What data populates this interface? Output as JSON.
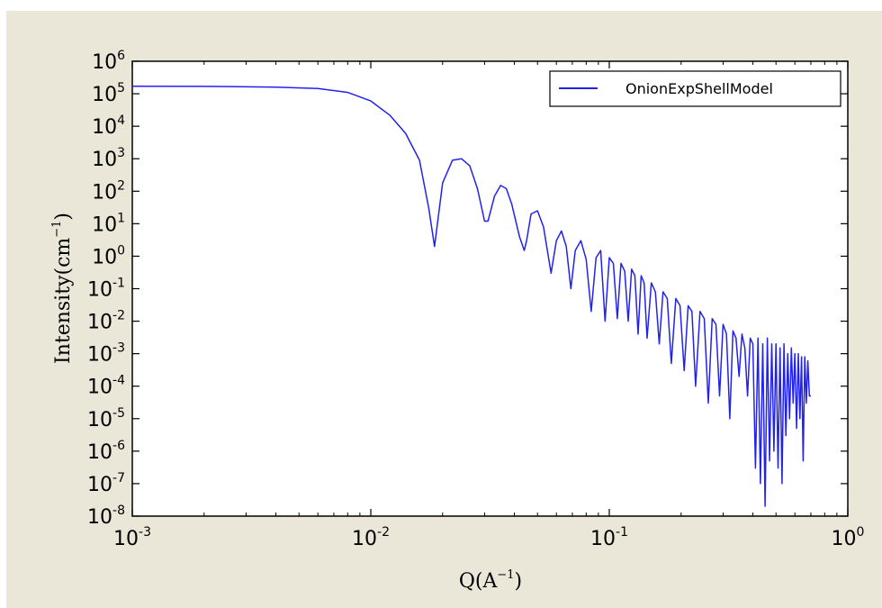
{
  "chart_data": {
    "type": "line",
    "xlabel": {
      "base": "Q(A",
      "sup": "−1",
      "close": ")"
    },
    "ylabel": {
      "base": "Intensity(cm",
      "sup": "−1",
      "close": ")"
    },
    "xscale": "log",
    "yscale": "log",
    "xlim": [
      0.001,
      1
    ],
    "ylim": [
      1e-08,
      1000000
    ],
    "grid": false,
    "legend_position": "top-right",
    "x_ticks": [
      {
        "value": 0.001,
        "mantissa": "10",
        "exponent": "-3"
      },
      {
        "value": 0.01,
        "mantissa": "10",
        "exponent": "-2"
      },
      {
        "value": 0.1,
        "mantissa": "10",
        "exponent": "-1"
      },
      {
        "value": 1,
        "mantissa": "10",
        "exponent": "0"
      }
    ],
    "y_ticks": [
      {
        "value": 1e-08,
        "mantissa": "10",
        "exponent": "-8"
      },
      {
        "value": 1e-07,
        "mantissa": "10",
        "exponent": "-7"
      },
      {
        "value": 1e-06,
        "mantissa": "10",
        "exponent": "-6"
      },
      {
        "value": 1e-05,
        "mantissa": "10",
        "exponent": "-5"
      },
      {
        "value": 0.0001,
        "mantissa": "10",
        "exponent": "-4"
      },
      {
        "value": 0.001,
        "mantissa": "10",
        "exponent": "-3"
      },
      {
        "value": 0.01,
        "mantissa": "10",
        "exponent": "-2"
      },
      {
        "value": 0.1,
        "mantissa": "10",
        "exponent": "-1"
      },
      {
        "value": 1,
        "mantissa": "10",
        "exponent": "0"
      },
      {
        "value": 10,
        "mantissa": "10",
        "exponent": "1"
      },
      {
        "value": 100,
        "mantissa": "10",
        "exponent": "2"
      },
      {
        "value": 1000,
        "mantissa": "10",
        "exponent": "3"
      },
      {
        "value": 10000,
        "mantissa": "10",
        "exponent": "4"
      },
      {
        "value": 100000,
        "mantissa": "10",
        "exponent": "5"
      },
      {
        "value": 1000000,
        "mantissa": "10",
        "exponent": "6"
      }
    ],
    "series": [
      {
        "name": "OnionExpShellModel",
        "color": "#2222ee",
        "x": [
          0.001,
          0.002,
          0.004,
          0.006,
          0.008,
          0.01,
          0.012,
          0.014,
          0.016,
          0.0175,
          0.0185,
          0.02,
          0.022,
          0.024,
          0.026,
          0.028,
          0.03,
          0.031,
          0.033,
          0.035,
          0.037,
          0.039,
          0.042,
          0.044,
          0.045,
          0.047,
          0.05,
          0.053,
          0.057,
          0.06,
          0.063,
          0.066,
          0.069,
          0.072,
          0.076,
          0.08,
          0.084,
          0.088,
          0.092,
          0.096,
          0.1,
          0.104,
          0.108,
          0.112,
          0.116,
          0.12,
          0.124,
          0.128,
          0.132,
          0.136,
          0.14,
          0.144,
          0.15,
          0.156,
          0.162,
          0.168,
          0.175,
          0.182,
          0.19,
          0.198,
          0.206,
          0.214,
          0.222,
          0.23,
          0.24,
          0.25,
          0.26,
          0.27,
          0.28,
          0.29,
          0.3,
          0.31,
          0.32,
          0.33,
          0.34,
          0.35,
          0.36,
          0.37,
          0.38,
          0.39,
          0.4,
          0.41,
          0.42,
          0.43,
          0.44,
          0.45,
          0.46,
          0.47,
          0.48,
          0.49,
          0.5,
          0.51,
          0.52,
          0.53,
          0.54,
          0.55,
          0.56,
          0.57,
          0.58,
          0.59,
          0.6,
          0.61,
          0.62,
          0.63,
          0.64,
          0.65,
          0.66,
          0.67,
          0.68,
          0.69,
          0.7
        ],
        "y": [
          170000,
          168000,
          160000,
          145000,
          110000,
          60000,
          22000,
          6000,
          900,
          30,
          2,
          180,
          900,
          1000,
          600,
          120,
          12,
          12,
          70,
          150,
          120,
          40,
          4,
          1.5,
          3,
          20,
          25,
          8,
          0.3,
          3,
          6,
          2,
          0.1,
          1.5,
          3,
          0.8,
          0.02,
          0.9,
          1.5,
          0.01,
          0.9,
          0.6,
          0.012,
          0.6,
          0.35,
          0.01,
          0.4,
          0.25,
          0.004,
          0.25,
          0.15,
          0.003,
          0.15,
          0.08,
          0.002,
          0.08,
          0.05,
          0.0005,
          0.05,
          0.03,
          0.0003,
          0.03,
          0.02,
          0.0001,
          0.02,
          0.012,
          3e-05,
          0.012,
          0.008,
          5e-05,
          0.008,
          0.004,
          1e-05,
          0.005,
          0.003,
          0.0002,
          0.004,
          0.0015,
          5e-05,
          0.003,
          0.002,
          3e-07,
          0.003,
          1e-07,
          0.002,
          2e-08,
          0.003,
          5e-07,
          0.002,
          1e-06,
          0.002,
          3e-07,
          0.0015,
          1e-07,
          0.002,
          3e-06,
          0.001,
          1e-05,
          0.0015,
          3e-05,
          0.001,
          5e-06,
          0.001,
          1e-05,
          0.0008,
          5e-07,
          0.0008,
          3e-05,
          0.0006,
          5e-05,
          5e-05
        ]
      }
    ]
  }
}
